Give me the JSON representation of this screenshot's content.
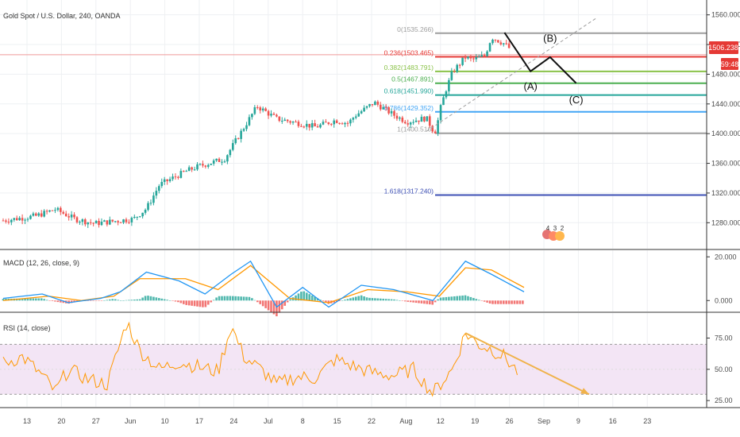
{
  "header": {
    "symbol": "Gold Spot / U.S. Dollar, 240, OANDA",
    "macd_title": "MACD (12, 26, close, 9)",
    "rsi_title": "RSI (14, close)"
  },
  "price_badges": {
    "last_price": "1506.238",
    "countdown": "59:48",
    "price_color": "#e53935",
    "countdown_color": "#e53935"
  },
  "colors": {
    "up": "#26a69a",
    "down": "#ef5350",
    "macd_line": "#2196f3",
    "signal_line": "#ff9800",
    "rsi_line": "#ff9800",
    "rsi_band": "#f3e5f5",
    "trend_arrow": "#f0b24a"
  },
  "chart_data": [
    {
      "type": "candlestick",
      "pane": "price",
      "ylim": [
        1245,
        1580
      ],
      "y_ticks": [
        "1560.000",
        "1520.000",
        "1480.000",
        "1440.000",
        "1400.000",
        "1360.000",
        "1320.000",
        "1280.000"
      ],
      "x_ticks": [
        "13",
        "20",
        "27",
        "Jun",
        "10",
        "17",
        "24",
        "Jul",
        "8",
        "15",
        "22",
        "Aug",
        "12",
        "19",
        "26",
        "Sep",
        "9",
        "16",
        "23"
      ],
      "path": [
        [
          0,
          1283
        ],
        [
          5,
          1289
        ],
        [
          8,
          1298
        ],
        [
          11,
          1285
        ],
        [
          14,
          1279
        ],
        [
          17,
          1282
        ],
        [
          20,
          1285
        ],
        [
          22,
          1299
        ],
        [
          24,
          1331
        ],
        [
          26,
          1340
        ],
        [
          28,
          1349
        ],
        [
          30,
          1356
        ],
        [
          34,
          1366
        ],
        [
          39,
          1437
        ],
        [
          42,
          1420
        ],
        [
          46,
          1413
        ],
        [
          48,
          1409
        ],
        [
          51,
          1418
        ],
        [
          53,
          1414
        ],
        [
          54,
          1424
        ],
        [
          57,
          1442
        ],
        [
          60,
          1425
        ],
        [
          62,
          1416
        ],
        [
          65,
          1421
        ],
        [
          66,
          1405
        ],
        [
          66.5,
          1403
        ],
        [
          67,
          1429
        ],
        [
          68,
          1459
        ],
        [
          69,
          1483
        ],
        [
          71,
          1503
        ],
        [
          72,
          1499
        ],
        [
          74,
          1505
        ],
        [
          75,
          1530
        ],
        [
          77,
          1521
        ],
        [
          78,
          1513
        ]
      ],
      "fibonacci": [
        {
          "level": "0",
          "price": 1535.266,
          "label": "0(1535.266)",
          "color": "#9e9e9e"
        },
        {
          "level": "0.236",
          "price": 1503.465,
          "label": "0.236(1503.465)",
          "color": "#e53935"
        },
        {
          "level": "0.382",
          "price": 1483.791,
          "label": "0.382(1483.791)",
          "color": "#8bc34a"
        },
        {
          "level": "0.5",
          "price": 1467.891,
          "label": "0.5(1467.891)",
          "color": "#4caf50"
        },
        {
          "level": "0.618",
          "price": 1451.99,
          "label": "0.618(1451.990)",
          "color": "#26a69a"
        },
        {
          "level": "0.786",
          "price": 1429.352,
          "label": "0.786(1429.352)",
          "color": "#42a5f5"
        },
        {
          "level": "1",
          "price": 1400.516,
          "label": "1(1400.516)",
          "color": "#9e9e9e"
        },
        {
          "level": "1.618",
          "price": 1317.24,
          "label": "1.618(1317.240)",
          "color": "#3f51b5"
        }
      ],
      "wave_labels": [
        "(A)",
        "(B)",
        "(C)"
      ],
      "wave_path": [
        [
          77,
          1536
        ],
        [
          81,
          1484
        ],
        [
          84,
          1503
        ],
        [
          88,
          1468
        ]
      ],
      "wave_label_points": [
        [
          81,
          1459
        ],
        [
          84,
          1524
        ],
        [
          88,
          1441
        ]
      ],
      "trendline": [
        [
          65,
          1403
        ],
        [
          91,
          1555
        ]
      ],
      "badge_text": [
        "4",
        "3",
        "2"
      ]
    },
    {
      "type": "line",
      "pane": "macd",
      "ylim": [
        -5,
        23
      ],
      "y_ticks": [
        "20.000",
        "0.000"
      ],
      "series": [
        {
          "role": "macd",
          "points": [
            [
              0,
              1
            ],
            [
              6,
              3
            ],
            [
              10,
              -1
            ],
            [
              15,
              1
            ],
            [
              18,
              4
            ],
            [
              22,
              13
            ],
            [
              27,
              9
            ],
            [
              31,
              3
            ],
            [
              35,
              12
            ],
            [
              38,
              18
            ],
            [
              42,
              -3
            ],
            [
              46,
              6
            ],
            [
              50,
              -3
            ],
            [
              55,
              7
            ],
            [
              60,
              5
            ],
            [
              66,
              0
            ],
            [
              71,
              18
            ],
            [
              75,
              12
            ],
            [
              80,
              4
            ]
          ]
        },
        {
          "role": "signal",
          "points": [
            [
              0,
              0
            ],
            [
              7,
              2
            ],
            [
              12,
              0
            ],
            [
              17,
              2
            ],
            [
              21,
              10
            ],
            [
              28,
              10
            ],
            [
              33,
              5
            ],
            [
              38,
              16
            ],
            [
              44,
              1
            ],
            [
              50,
              -1
            ],
            [
              56,
              5
            ],
            [
              62,
              4
            ],
            [
              67,
              2
            ],
            [
              71,
              15
            ],
            [
              75,
              14
            ],
            [
              80,
              6
            ]
          ]
        }
      ]
    },
    {
      "type": "line",
      "pane": "rsi",
      "ylim": [
        20,
        95
      ],
      "y_ticks": [
        "75.00",
        "50.00",
        "25.00"
      ],
      "band": [
        30,
        70
      ],
      "points": [
        [
          0,
          55
        ],
        [
          3,
          60
        ],
        [
          6,
          45
        ],
        [
          8,
          32
        ],
        [
          10,
          50
        ],
        [
          13,
          42
        ],
        [
          16,
          38
        ],
        [
          19,
          88
        ],
        [
          21,
          65
        ],
        [
          24,
          50
        ],
        [
          27,
          56
        ],
        [
          30,
          52
        ],
        [
          33,
          48
        ],
        [
          35,
          85
        ],
        [
          37,
          60
        ],
        [
          40,
          48
        ],
        [
          42,
          38
        ],
        [
          45,
          44
        ],
        [
          48,
          43
        ],
        [
          51,
          58
        ],
        [
          54,
          52
        ],
        [
          57,
          47
        ],
        [
          60,
          45
        ],
        [
          63,
          50
        ],
        [
          66,
          31
        ],
        [
          69,
          50
        ],
        [
          71,
          79
        ],
        [
          73,
          70
        ],
        [
          75,
          66
        ],
        [
          77,
          60
        ],
        [
          79,
          48
        ]
      ],
      "trend_arrow": [
        [
          71,
          79
        ],
        [
          90,
          30
        ]
      ]
    }
  ]
}
